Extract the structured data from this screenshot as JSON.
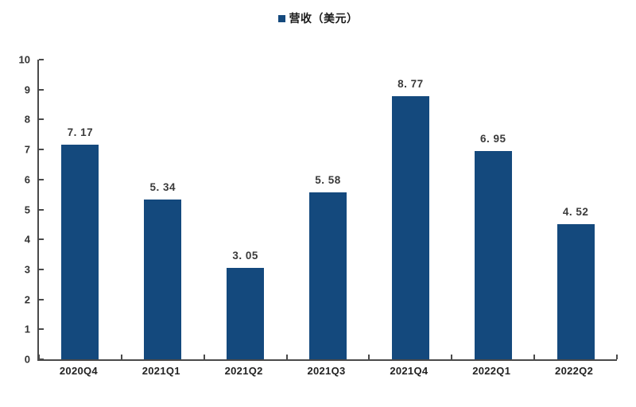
{
  "chart_data": {
    "type": "bar",
    "title": "",
    "legend": {
      "position": "top-center",
      "items": [
        {
          "label": "营收（美元）",
          "marker": "square-icon",
          "color": "#14497D"
        }
      ]
    },
    "categories": [
      "2020Q4",
      "2021Q1",
      "2021Q2",
      "2021Q3",
      "2021Q4",
      "2022Q1",
      "2022Q2"
    ],
    "series": [
      {
        "name": "营收（美元）",
        "values": [
          7.17,
          5.34,
          3.05,
          5.58,
          8.77,
          6.95,
          4.52
        ],
        "data_labels": [
          "7. 17",
          "5. 34",
          "3. 05",
          "5. 58",
          "8. 77",
          "6. 95",
          "4. 52"
        ]
      }
    ],
    "xlabel": "",
    "ylabel": "",
    "ylim": [
      0,
      10
    ],
    "y_ticks": [
      0,
      1,
      2,
      3,
      4,
      5,
      6,
      7,
      8,
      9,
      10
    ],
    "grid": false,
    "background": "#ffffff",
    "colors": {
      "bar": "#14497D",
      "axis": "#4a4a4a",
      "data_label_text": "#3a3a3a",
      "tick_label_text": "#333333"
    }
  }
}
